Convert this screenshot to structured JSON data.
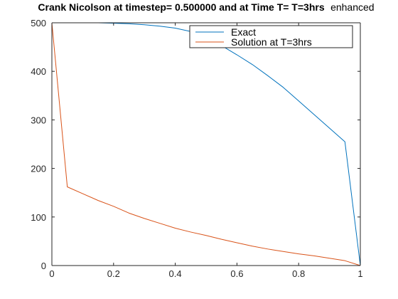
{
  "chart_data": {
    "type": "line",
    "title": "Crank Nicolson at timestep= 0.500000 and at Time T= T=3hrs",
    "title_suffix": "enhanced",
    "xlabel": "",
    "ylabel": "",
    "xlim": [
      0,
      1
    ],
    "ylim": [
      0,
      500
    ],
    "xticks": [
      0,
      0.2,
      0.4,
      0.6,
      0.8,
      1
    ],
    "xtick_labels": [
      "0",
      "0.2",
      "0.4",
      "0.6",
      "0.8",
      "1"
    ],
    "yticks": [
      0,
      100,
      200,
      300,
      400,
      500
    ],
    "ytick_labels": [
      "0",
      "100",
      "200",
      "300",
      "400",
      "500"
    ],
    "grid": false,
    "legend_position": "top-right",
    "series": [
      {
        "name": "Exact",
        "color": "#0072BD",
        "x": [
          0,
          0.05,
          0.1,
          0.15,
          0.2,
          0.25,
          0.3,
          0.35,
          0.4,
          0.45,
          0.5,
          0.55,
          0.6,
          0.65,
          0.7,
          0.75,
          0.8,
          0.85,
          0.9,
          0.95,
          1
        ],
        "y": [
          500,
          500,
          500,
          500,
          499,
          498,
          496,
          493,
          489,
          482,
          470,
          453,
          434,
          414,
          391,
          367,
          339,
          311,
          283,
          255,
          0
        ]
      },
      {
        "name": "Solution at T=3hrs",
        "color": "#D95319",
        "x": [
          0,
          0.05,
          0.1,
          0.15,
          0.2,
          0.25,
          0.3,
          0.35,
          0.4,
          0.45,
          0.5,
          0.55,
          0.6,
          0.65,
          0.7,
          0.75,
          0.8,
          0.85,
          0.9,
          0.95,
          1
        ],
        "y": [
          500,
          162,
          148,
          134,
          122,
          108,
          97,
          87,
          77,
          69,
          62,
          54,
          47,
          40,
          34,
          29,
          24,
          20,
          15,
          10,
          0
        ]
      }
    ]
  }
}
